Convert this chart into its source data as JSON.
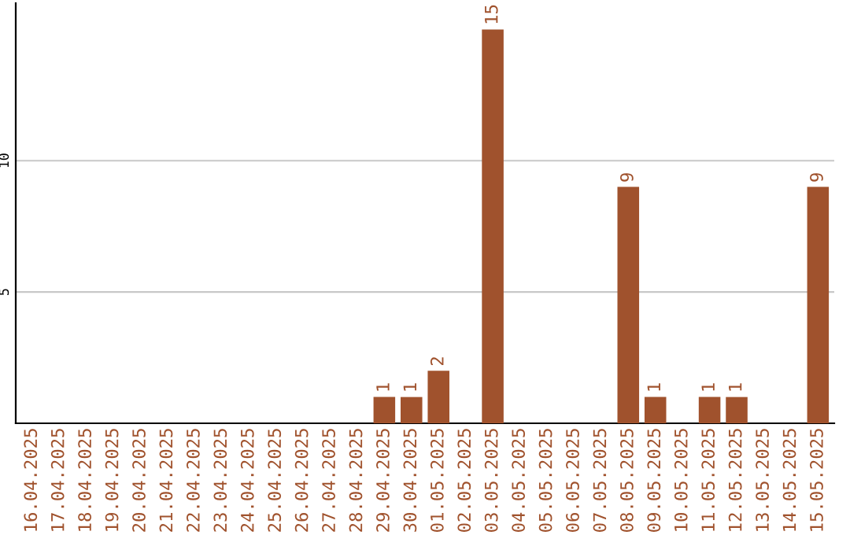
{
  "chart_data": {
    "type": "bar",
    "categories": [
      "16.04.2025",
      "17.04.2025",
      "18.04.2025",
      "19.04.2025",
      "20.04.2025",
      "21.04.2025",
      "22.04.2025",
      "23.04.2025",
      "24.04.2025",
      "25.04.2025",
      "26.04.2025",
      "27.04.2025",
      "28.04.2025",
      "29.04.2025",
      "30.04.2025",
      "01.05.2025",
      "02.05.2025",
      "03.05.2025",
      "04.05.2025",
      "05.05.2025",
      "06.05.2025",
      "07.05.2025",
      "08.05.2025",
      "09.05.2025",
      "10.05.2025",
      "11.05.2025",
      "12.05.2025",
      "13.05.2025",
      "14.05.2025",
      "15.05.2025"
    ],
    "values": [
      0,
      0,
      0,
      0,
      0,
      0,
      0,
      0,
      0,
      0,
      0,
      0,
      0,
      1,
      1,
      2,
      0,
      15,
      0,
      0,
      0,
      0,
      9,
      1,
      0,
      1,
      1,
      0,
      0,
      9
    ],
    "value_labels": [
      null,
      null,
      null,
      null,
      null,
      null,
      null,
      null,
      null,
      null,
      null,
      null,
      null,
      "1",
      "1",
      "2",
      null,
      "15",
      null,
      null,
      null,
      null,
      "9",
      "1",
      null,
      "1",
      "1",
      null,
      null,
      "9"
    ],
    "color": "#a0522d",
    "ylim": [
      0,
      16
    ],
    "yticks": [
      5,
      10
    ],
    "grid": "y",
    "legend": false
  }
}
